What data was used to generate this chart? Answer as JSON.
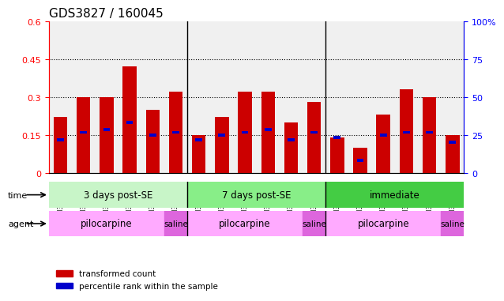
{
  "title": "GDS3827 / 160045",
  "samples": [
    "GSM367527",
    "GSM367528",
    "GSM367531",
    "GSM367532",
    "GSM367534",
    "GSM367718",
    "GSM367536",
    "GSM367538",
    "GSM367539",
    "GSM367540",
    "GSM367541",
    "GSM367719",
    "GSM367545",
    "GSM367546",
    "GSM367548",
    "GSM367549",
    "GSM367551",
    "GSM367721"
  ],
  "red_bar_heights": [
    0.22,
    0.3,
    0.3,
    0.42,
    0.25,
    0.32,
    0.15,
    0.22,
    0.32,
    0.32,
    0.2,
    0.28,
    0.14,
    0.1,
    0.23,
    0.33,
    0.3,
    0.15
  ],
  "blue_marker_pos": [
    0.13,
    0.16,
    0.17,
    0.2,
    0.15,
    0.16,
    0.13,
    0.15,
    0.16,
    0.17,
    0.13,
    0.16,
    0.14,
    0.05,
    0.15,
    0.16,
    0.16,
    0.12
  ],
  "ylim_left": [
    0,
    0.6
  ],
  "ylim_right": [
    0,
    100
  ],
  "yticks_left": [
    0,
    0.15,
    0.3,
    0.45,
    0.6
  ],
  "yticks_right": [
    0,
    25,
    50,
    75,
    100
  ],
  "ytick_labels_left": [
    "0",
    "0.15",
    "0.3",
    "0.45",
    "0.6"
  ],
  "ytick_labels_right": [
    "0",
    "25",
    "50",
    "75",
    "100%"
  ],
  "hlines": [
    0.15,
    0.3,
    0.45
  ],
  "time_groups": [
    {
      "label": "3 days post-SE",
      "start": 0,
      "end": 5,
      "color": "#aaffaa"
    },
    {
      "label": "7 days post-SE",
      "start": 6,
      "end": 11,
      "color": "#55cc55"
    },
    {
      "label": "immediate",
      "start": 12,
      "end": 17,
      "color": "#22bb22"
    }
  ],
  "agent_groups": [
    {
      "label": "pilocarpine",
      "start": 0,
      "end": 4,
      "color": "#ffaaff"
    },
    {
      "label": "saline",
      "start": 5,
      "end": 5,
      "color": "#dd88dd"
    },
    {
      "label": "pilocarpine",
      "start": 6,
      "end": 10,
      "color": "#ffaaff"
    },
    {
      "label": "saline",
      "start": 11,
      "end": 11,
      "color": "#dd88dd"
    },
    {
      "label": "pilocarpine",
      "start": 12,
      "end": 16,
      "color": "#ffaaff"
    },
    {
      "label": "saline",
      "start": 17,
      "end": 17,
      "color": "#dd88dd"
    }
  ],
  "bar_color": "#cc0000",
  "blue_color": "#0000cc",
  "bar_width": 0.6,
  "legend_items": [
    {
      "color": "#cc0000",
      "label": "transformed count"
    },
    {
      "color": "#0000cc",
      "label": "percentile rank within the sample"
    }
  ],
  "background_color": "#ffffff",
  "title_fontsize": 11,
  "tick_fontsize": 8,
  "label_fontsize": 9
}
